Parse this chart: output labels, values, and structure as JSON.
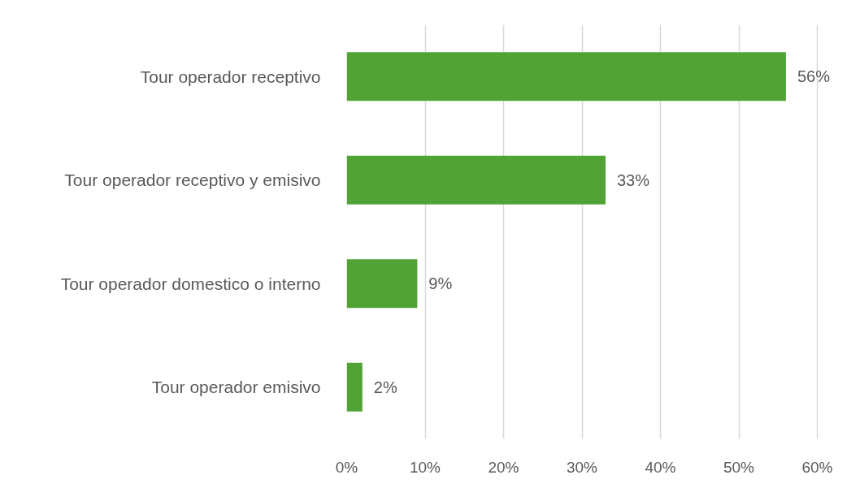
{
  "chart_data": {
    "type": "bar",
    "orientation": "horizontal",
    "categories": [
      "Tour operador receptivo",
      "Tour operador receptivo y emisivo",
      "Tour operador domestico o interno",
      "Tour operador emisivo"
    ],
    "values": [
      56,
      33,
      9,
      2
    ],
    "value_labels": [
      "56%",
      "33%",
      "9%",
      "2%"
    ],
    "color": "#52a336",
    "xlim": [
      0,
      60
    ],
    "xticks": [
      {
        "value": 0,
        "label": "0%"
      },
      {
        "value": 10,
        "label": "10%"
      },
      {
        "value": 20,
        "label": "20%"
      },
      {
        "value": 30,
        "label": "30%"
      },
      {
        "value": 40,
        "label": "40%"
      },
      {
        "value": 50,
        "label": "50%"
      },
      {
        "value": 60,
        "label": "60%"
      }
    ],
    "grid": "x"
  }
}
